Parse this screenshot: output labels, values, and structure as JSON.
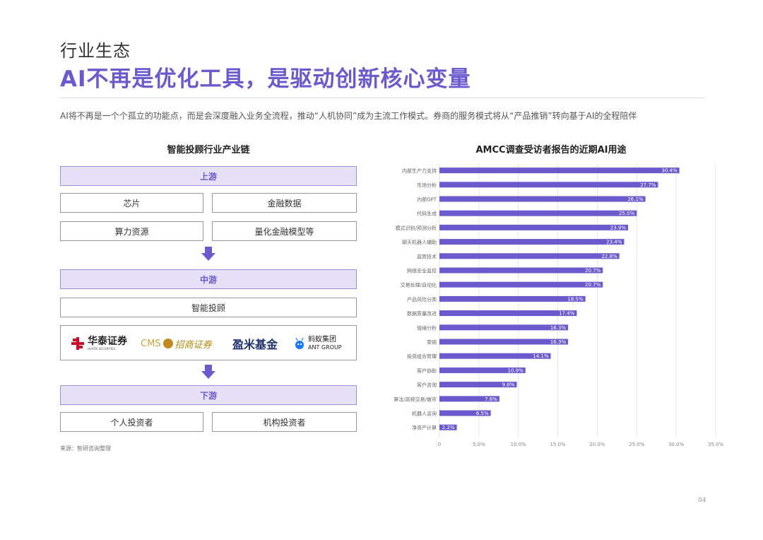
{
  "header": {
    "section": "行业生态",
    "title": "AI不再是优化工具，是驱动创新核心变量",
    "subtitle": "AI将不再是一个个孤立的功能点，而是会深度融入业务全流程，推动“人机协同”成为主流工作模式。券商的服务模式将从“产品推销”转向基于AI的全程陪伴"
  },
  "left": {
    "title": "智能投顾行业产业链",
    "upstream": {
      "label": "上游",
      "items": [
        "芯片",
        "金融数据",
        "算力资源",
        "量化金融模型等"
      ]
    },
    "midstream": {
      "label": "中游",
      "items": [
        "智能投顾"
      ]
    },
    "logos": {
      "huatai": "华泰证券",
      "huatai_en": "HUATAI SECURITIES",
      "cms_en": "CMS",
      "cms": "招商证券",
      "yingmi": "盈米基金",
      "ant": "蚂蚁集团",
      "ant_en": "ANT GROUP"
    },
    "downstream": {
      "label": "下游",
      "items": [
        "个人投资者",
        "机构投资者"
      ]
    },
    "source": "来源：智研咨询整理"
  },
  "chart_data": {
    "type": "bar",
    "orientation": "horizontal",
    "title": "AMCC调查受访者报告的近期AI用途",
    "categories": [
      "内部生产力支持",
      "市场分析",
      "内部GPT",
      "代码生成",
      "模式识别/预测分析",
      "聊天机器人辅助",
      "监管技术",
      "网络安全监控",
      "交易处理/自动化",
      "产品风险分类",
      "数据质量改进",
      "情绪分析",
      "营销",
      "投资组合管理",
      "客户协助",
      "客户咨询",
      "算法/高频交易/做市",
      "机器人咨询",
      "净资产计算"
    ],
    "values": [
      30.4,
      27.7,
      26.1,
      25.0,
      23.9,
      23.4,
      22.8,
      20.7,
      20.7,
      18.5,
      17.4,
      16.3,
      16.3,
      14.1,
      10.9,
      9.8,
      7.6,
      6.5,
      2.2
    ],
    "value_labels": [
      "30.4%",
      "27.7%",
      "26.1%",
      "25.0%",
      "23.9%",
      "23.4%",
      "22.8%",
      "20.7%",
      "20.7%",
      "18.5%",
      "17.4%",
      "16.3%",
      "16.3%",
      "14.1%",
      "10.9%",
      "9.8%",
      "7.6%",
      "6.5%",
      "2.2%"
    ],
    "xlim": [
      0,
      35
    ],
    "xticks": [
      0,
      5,
      10,
      15,
      20,
      25,
      30,
      35
    ],
    "xtick_labels": [
      "0",
      "5.0%",
      "10.0%",
      "15.0%",
      "20.0%",
      "25.0%",
      "30.0%",
      "35.0%"
    ],
    "bar_color": "#6a5acd",
    "grid": "vertical"
  },
  "page_number": "04",
  "colors": {
    "accent": "#6a5acd",
    "band_fill": "#e6e1f7",
    "huatai_red": "#c8102e",
    "cms_gold": "#b8860b",
    "yingmi_navy": "#1c2f6e",
    "ant_blue": "#1677ff"
  }
}
